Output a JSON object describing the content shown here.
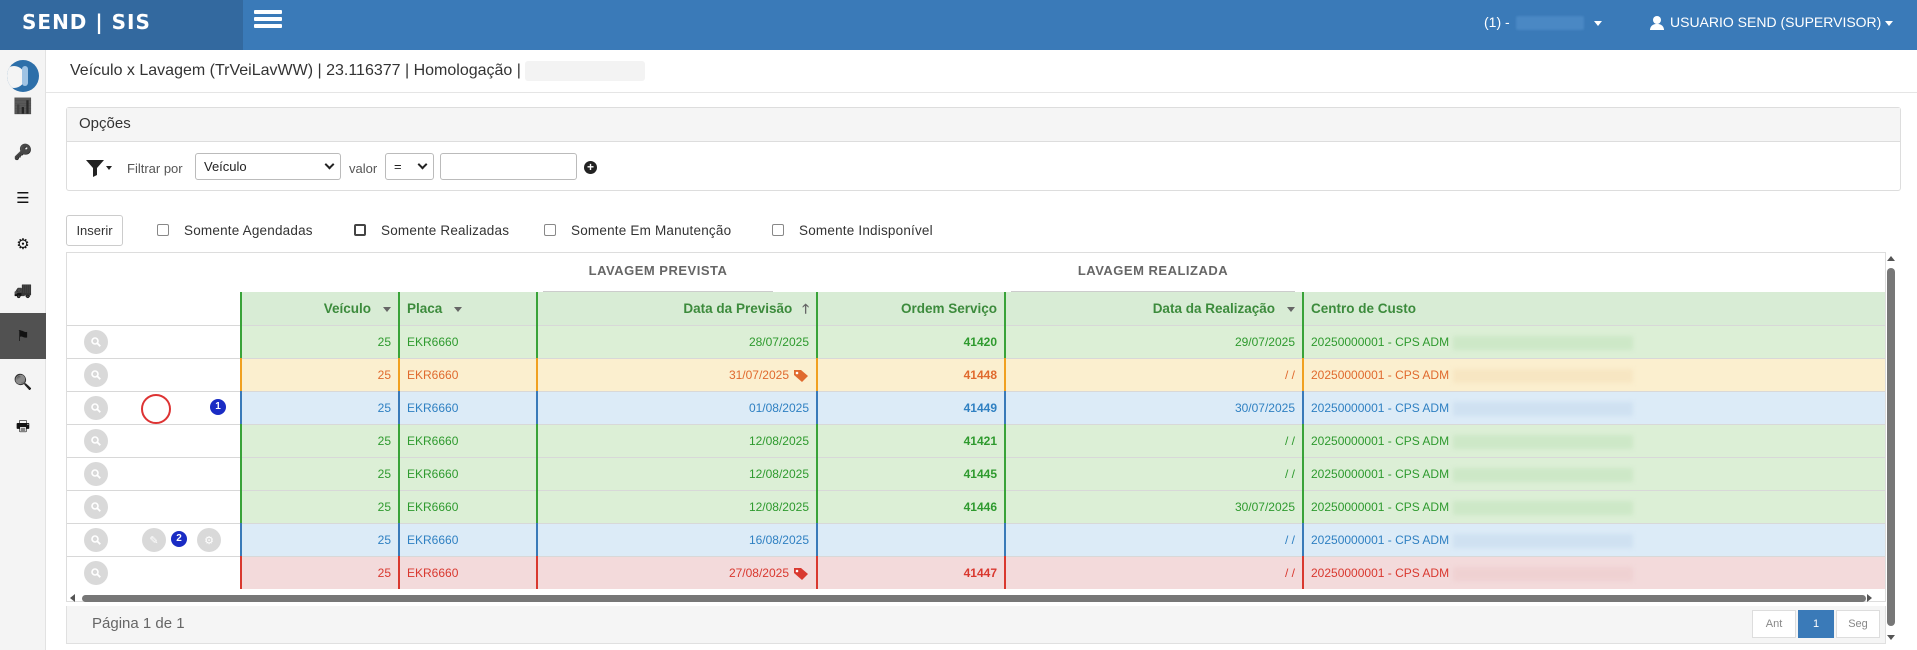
{
  "app": {
    "brand": "SEND | SIS"
  },
  "header": {
    "company_label": "(1) -",
    "user_label": "USUARIO SEND (SUPERVISOR)"
  },
  "sidebar": {
    "items": [
      {
        "name": "dashboard",
        "icon": "bar-chart-icon",
        "glyph": "📊"
      },
      {
        "name": "keys",
        "icon": "key-icon",
        "glyph": "🔑"
      },
      {
        "name": "list",
        "icon": "list-icon",
        "glyph": "☰"
      },
      {
        "name": "settings",
        "icon": "gears-icon",
        "glyph": "⚙"
      },
      {
        "name": "truck",
        "icon": "truck-icon",
        "glyph": "🚚"
      },
      {
        "name": "wash",
        "icon": "flag-hand-icon",
        "glyph": "⚑"
      },
      {
        "name": "search",
        "icon": "search-icon",
        "glyph": "🔍"
      },
      {
        "name": "print",
        "icon": "print-icon",
        "glyph": "🖶"
      }
    ]
  },
  "page": {
    "title": "Veículo x Lavagem (TrVeiLavWW) | 23.116377 | Homologação |"
  },
  "options": {
    "heading": "Opções",
    "filter_by_label": "Filtrar por",
    "filter_field_value": "Veículo",
    "value_label": "valor",
    "operator_value": "=",
    "value_input": ""
  },
  "toolbar": {
    "insert_label": "Inserir"
  },
  "checkboxes": [
    {
      "label": "Somente Agendadas",
      "checked": false
    },
    {
      "label": "Somente Realizadas",
      "checked": false
    },
    {
      "label": "Somente Em Manutenção",
      "checked": false
    },
    {
      "label": "Somente Indisponível",
      "checked": false
    }
  ],
  "grid": {
    "group_headers": {
      "planned": "LAVAGEM PREVISTA",
      "done": "LAVAGEM REALIZADA"
    },
    "columns": {
      "vehicle": "Veículo",
      "plate": "Placa",
      "planned_date": "Data da Previsão",
      "service_order": "Ordem Serviço",
      "done_date": "Data da Realização",
      "cost_center": "Centro de Custo"
    },
    "rows": [
      {
        "vehicle": "25",
        "plate": "EKR6660",
        "planned_date": "28/07/2025",
        "service_order": "41420",
        "done_date": "29/07/2025",
        "cost_center": "20250000001 - CPS ADM",
        "status": "green",
        "tag": false
      },
      {
        "vehicle": "25",
        "plate": "EKR6660",
        "planned_date": "31/07/2025",
        "service_order": "41448",
        "done_date": "/ /",
        "cost_center": "20250000001 - CPS ADM",
        "status": "orange",
        "tag": true
      },
      {
        "vehicle": "25",
        "plate": "EKR6660",
        "planned_date": "01/08/2025",
        "service_order": "41449",
        "done_date": "30/07/2025",
        "cost_center": "20250000001 - CPS ADM",
        "status": "blue",
        "tag": false,
        "badge": "1"
      },
      {
        "vehicle": "25",
        "plate": "EKR6660",
        "planned_date": "12/08/2025",
        "service_order": "41421",
        "done_date": "/ /",
        "cost_center": "20250000001 - CPS ADM",
        "status": "green",
        "tag": false
      },
      {
        "vehicle": "25",
        "plate": "EKR6660",
        "planned_date": "12/08/2025",
        "service_order": "41445",
        "done_date": "/ /",
        "cost_center": "20250000001 - CPS ADM",
        "status": "green",
        "tag": false
      },
      {
        "vehicle": "25",
        "plate": "EKR6660",
        "planned_date": "12/08/2025",
        "service_order": "41446",
        "done_date": "30/07/2025",
        "cost_center": "20250000001 - CPS ADM",
        "status": "green",
        "tag": false
      },
      {
        "vehicle": "25",
        "plate": "EKR6660",
        "planned_date": "16/08/2025",
        "service_order": "",
        "done_date": "/ /",
        "cost_center": "20250000001 - CPS ADM",
        "status": "blue",
        "tag": false,
        "badge": "2"
      },
      {
        "vehicle": "25",
        "plate": "EKR6660",
        "planned_date": "27/08/2025",
        "service_order": "41447",
        "done_date": "/ /",
        "cost_center": "20250000001 - CPS ADM",
        "status": "red",
        "tag": true
      }
    ]
  },
  "pagination": {
    "info": "Página 1 de 1",
    "prev": "Ant",
    "current": "1",
    "next": "Seg"
  },
  "colors": {
    "navbar": "#3a7ab8",
    "green_bg": "#dcefd6",
    "green_text": "#2e9a2e",
    "green_border": "#39a339",
    "orange_bg": "#fbefcf",
    "orange_text": "#e06a2e",
    "orange_border": "#f0a020",
    "blue_bg": "#dcebf7",
    "blue_text": "#2f80c2",
    "blue_border": "#3a7ab8",
    "red_bg": "#f3dadb",
    "red_text": "#d9382f",
    "red_border": "#d9382f"
  }
}
